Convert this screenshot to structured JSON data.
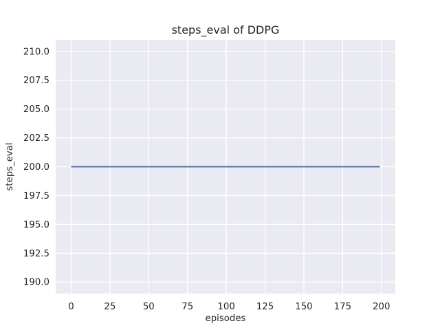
{
  "figure": {
    "background_color": "#ffffff",
    "axes_background_color": "#eaeaf2",
    "gridline_color": "#ffffff",
    "text_color": "#262626"
  },
  "chart_data": {
    "type": "line",
    "title": "steps_eval of DDPG",
    "xlabel": "episodes",
    "ylabel": "steps_eval",
    "xlim": [
      -9.95,
      208.95
    ],
    "ylim": [
      189.0,
      211.0
    ],
    "grid": true,
    "legend": false,
    "style": "seaborn-darkgrid",
    "xticks": {
      "values": [
        0,
        25,
        50,
        75,
        100,
        125,
        150,
        175,
        200
      ],
      "labels": [
        "0",
        "25",
        "50",
        "75",
        "100",
        "125",
        "150",
        "175",
        "200"
      ]
    },
    "yticks": {
      "values": [
        190.0,
        192.5,
        195.0,
        197.5,
        200.0,
        202.5,
        205.0,
        207.5,
        210.0
      ],
      "labels": [
        "190.0",
        "192.5",
        "195.0",
        "197.5",
        "200.0",
        "202.5",
        "205.0",
        "207.5",
        "210.0"
      ]
    },
    "series": [
      {
        "name": "steps_eval",
        "color": "#4c72b0",
        "line_width": 2,
        "x": [
          0,
          199
        ],
        "y": [
          200,
          200
        ],
        "constant_value": 200
      }
    ]
  }
}
